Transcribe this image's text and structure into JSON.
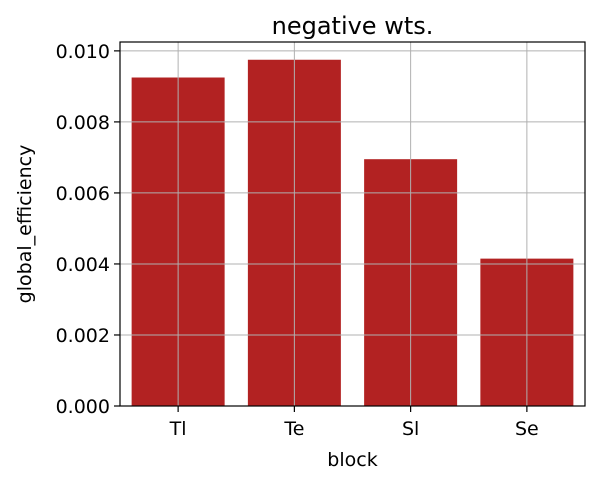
{
  "chart_data": {
    "type": "bar",
    "title": "negative wts.",
    "xlabel": "block",
    "ylabel": "global_efficiency",
    "categories": [
      "Tl",
      "Te",
      "Sl",
      "Se"
    ],
    "values": [
      0.00925,
      0.00975,
      0.00695,
      0.00415
    ],
    "ylim": [
      0,
      0.01025
    ],
    "yticks": [
      0.0,
      0.002,
      0.004,
      0.006,
      0.008,
      0.01
    ],
    "ytick_labels": [
      "0.000",
      "0.002",
      "0.004",
      "0.006",
      "0.008",
      "0.010"
    ],
    "grid": true,
    "bar_color": "#b22222"
  }
}
